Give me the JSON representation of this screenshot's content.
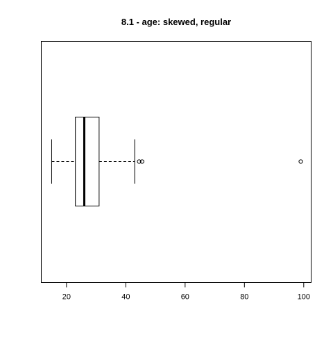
{
  "chart_data": {
    "type": "boxplot",
    "orientation": "horizontal",
    "title": "8.1 - age: skewed, regular",
    "xlabel": "",
    "ylabel": "",
    "xlim": [
      11.5,
      102.5
    ],
    "xticks": [
      20,
      40,
      60,
      80,
      100
    ],
    "xtick_labels": [
      "20",
      "40",
      "60",
      "80",
      "100"
    ],
    "grid": false,
    "legend": "none",
    "box": {
      "whisker_low": 15,
      "q1": 23,
      "median": 26,
      "q3": 31,
      "whisker_high": 43,
      "outliers": [
        44.5,
        45.5,
        99
      ]
    },
    "colors": {
      "stroke": "#000000",
      "background": "#ffffff"
    }
  }
}
